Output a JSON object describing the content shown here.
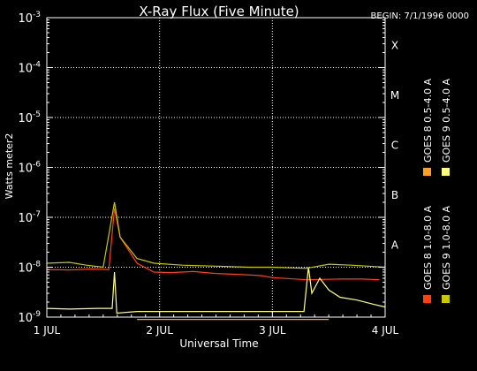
{
  "chart_data": {
    "type": "line",
    "title": "X-Ray Flux (Five Minute)",
    "begin_label": "BEGIN: 7/1/1996 0000",
    "xlabel": "Universal Time",
    "ylabel": "Watts meter2",
    "x_ticks": [
      {
        "t": 0,
        "label": "1 JUL"
      },
      {
        "t": 1,
        "label": "2 JUL"
      },
      {
        "t": 2,
        "label": "3 JUL"
      },
      {
        "t": 3,
        "label": "4 JUL"
      }
    ],
    "xlim": [
      0,
      3
    ],
    "y_scale": "log",
    "ylim": [
      1e-09,
      0.001
    ],
    "y_ticks": [
      {
        "base": "10",
        "exp": "-9",
        "value": 1e-09
      },
      {
        "base": "10",
        "exp": "-8",
        "value": 1e-08
      },
      {
        "base": "10",
        "exp": "-7",
        "value": 1e-07
      },
      {
        "base": "10",
        "exp": "-6",
        "value": 1e-06
      },
      {
        "base": "10",
        "exp": "-5",
        "value": 1e-05
      },
      {
        "base": "10",
        "exp": "-4",
        "value": 0.0001
      },
      {
        "base": "10",
        "exp": "-3",
        "value": 0.001
      }
    ],
    "flare_classes": [
      {
        "label": "A",
        "value": 1e-08
      },
      {
        "label": "B",
        "value": 1e-07
      },
      {
        "label": "C",
        "value": 1e-06
      },
      {
        "label": "M",
        "value": 1e-05
      },
      {
        "label": "X",
        "value": 0.0001
      }
    ],
    "grid": "dotted",
    "legend_placement": "right, vertical",
    "series": [
      {
        "name": "GOES 8 1.0-8.0 A",
        "color": "#ff4010",
        "points": [
          [
            0,
            9e-09
          ],
          [
            0.2,
            8.8e-09
          ],
          [
            0.4,
            9.2e-09
          ],
          [
            0.55,
            9e-09
          ],
          [
            0.6,
            1.5e-07
          ],
          [
            0.65,
            4e-08
          ],
          [
            0.8,
            1.2e-08
          ],
          [
            0.95,
            8e-09
          ],
          [
            1.1,
            7.8e-09
          ],
          [
            1.3,
            8.2e-09
          ],
          [
            1.5,
            7.5e-09
          ],
          [
            1.7,
            7.2e-09
          ],
          [
            1.9,
            6.8e-09
          ],
          [
            2.0,
            6.2e-09
          ],
          [
            2.3,
            5.6e-09
          ],
          [
            2.6,
            5.8e-09
          ],
          [
            2.8,
            5.8e-09
          ],
          [
            2.95,
            5.6e-09
          ]
        ]
      },
      {
        "name": "GOES 8 0.5-4.0 A",
        "color": "#ffa020",
        "points": [
          [
            0.8,
            9e-10
          ],
          [
            1.1,
            9e-10
          ],
          [
            2.05,
            9e-10
          ],
          [
            2.09,
            9e-10
          ],
          [
            2.3,
            9e-10
          ],
          [
            2.5,
            9e-10
          ]
        ]
      },
      {
        "name": "GOES 9 0.5-4.0 A",
        "color": "#ffff80",
        "points": [
          [
            0,
            1.5e-09
          ],
          [
            0.2,
            1.45e-09
          ],
          [
            0.45,
            1.5e-09
          ],
          [
            0.58,
            1.5e-09
          ],
          [
            0.6,
            8e-09
          ],
          [
            0.62,
            1.2e-09
          ],
          [
            0.8,
            1.3e-09
          ],
          [
            1.0,
            1.3e-09
          ],
          [
            1.2,
            1.3e-09
          ],
          [
            1.5,
            1.3e-09
          ],
          [
            1.8,
            1.3e-09
          ],
          [
            2.0,
            1.3e-09
          ],
          [
            2.28,
            1.3e-09
          ],
          [
            2.32,
            1e-08
          ],
          [
            2.35,
            3e-09
          ],
          [
            2.42,
            6e-09
          ],
          [
            2.5,
            3.5e-09
          ],
          [
            2.6,
            2.5e-09
          ],
          [
            2.75,
            2.2e-09
          ],
          [
            2.9,
            1.8e-09
          ],
          [
            3.0,
            1.6e-09
          ]
        ]
      },
      {
        "name": "GOES 9 1.0-8.0 A",
        "color": "#c8c800",
        "points": [
          [
            0,
            1.2e-08
          ],
          [
            0.2,
            1.25e-08
          ],
          [
            0.35,
            1.1e-08
          ],
          [
            0.5,
            1e-08
          ],
          [
            0.6,
            2e-07
          ],
          [
            0.65,
            4e-08
          ],
          [
            0.8,
            1.5e-08
          ],
          [
            0.95,
            1.2e-08
          ],
          [
            1.2,
            1.1e-08
          ],
          [
            1.5,
            1.05e-08
          ],
          [
            1.8,
            1e-08
          ],
          [
            2.0,
            1e-08
          ],
          [
            2.3,
            9.5e-09
          ],
          [
            2.5,
            1.15e-08
          ],
          [
            2.7,
            1.1e-08
          ],
          [
            2.85,
            1.05e-08
          ],
          [
            3.0,
            1e-08
          ]
        ]
      }
    ]
  }
}
